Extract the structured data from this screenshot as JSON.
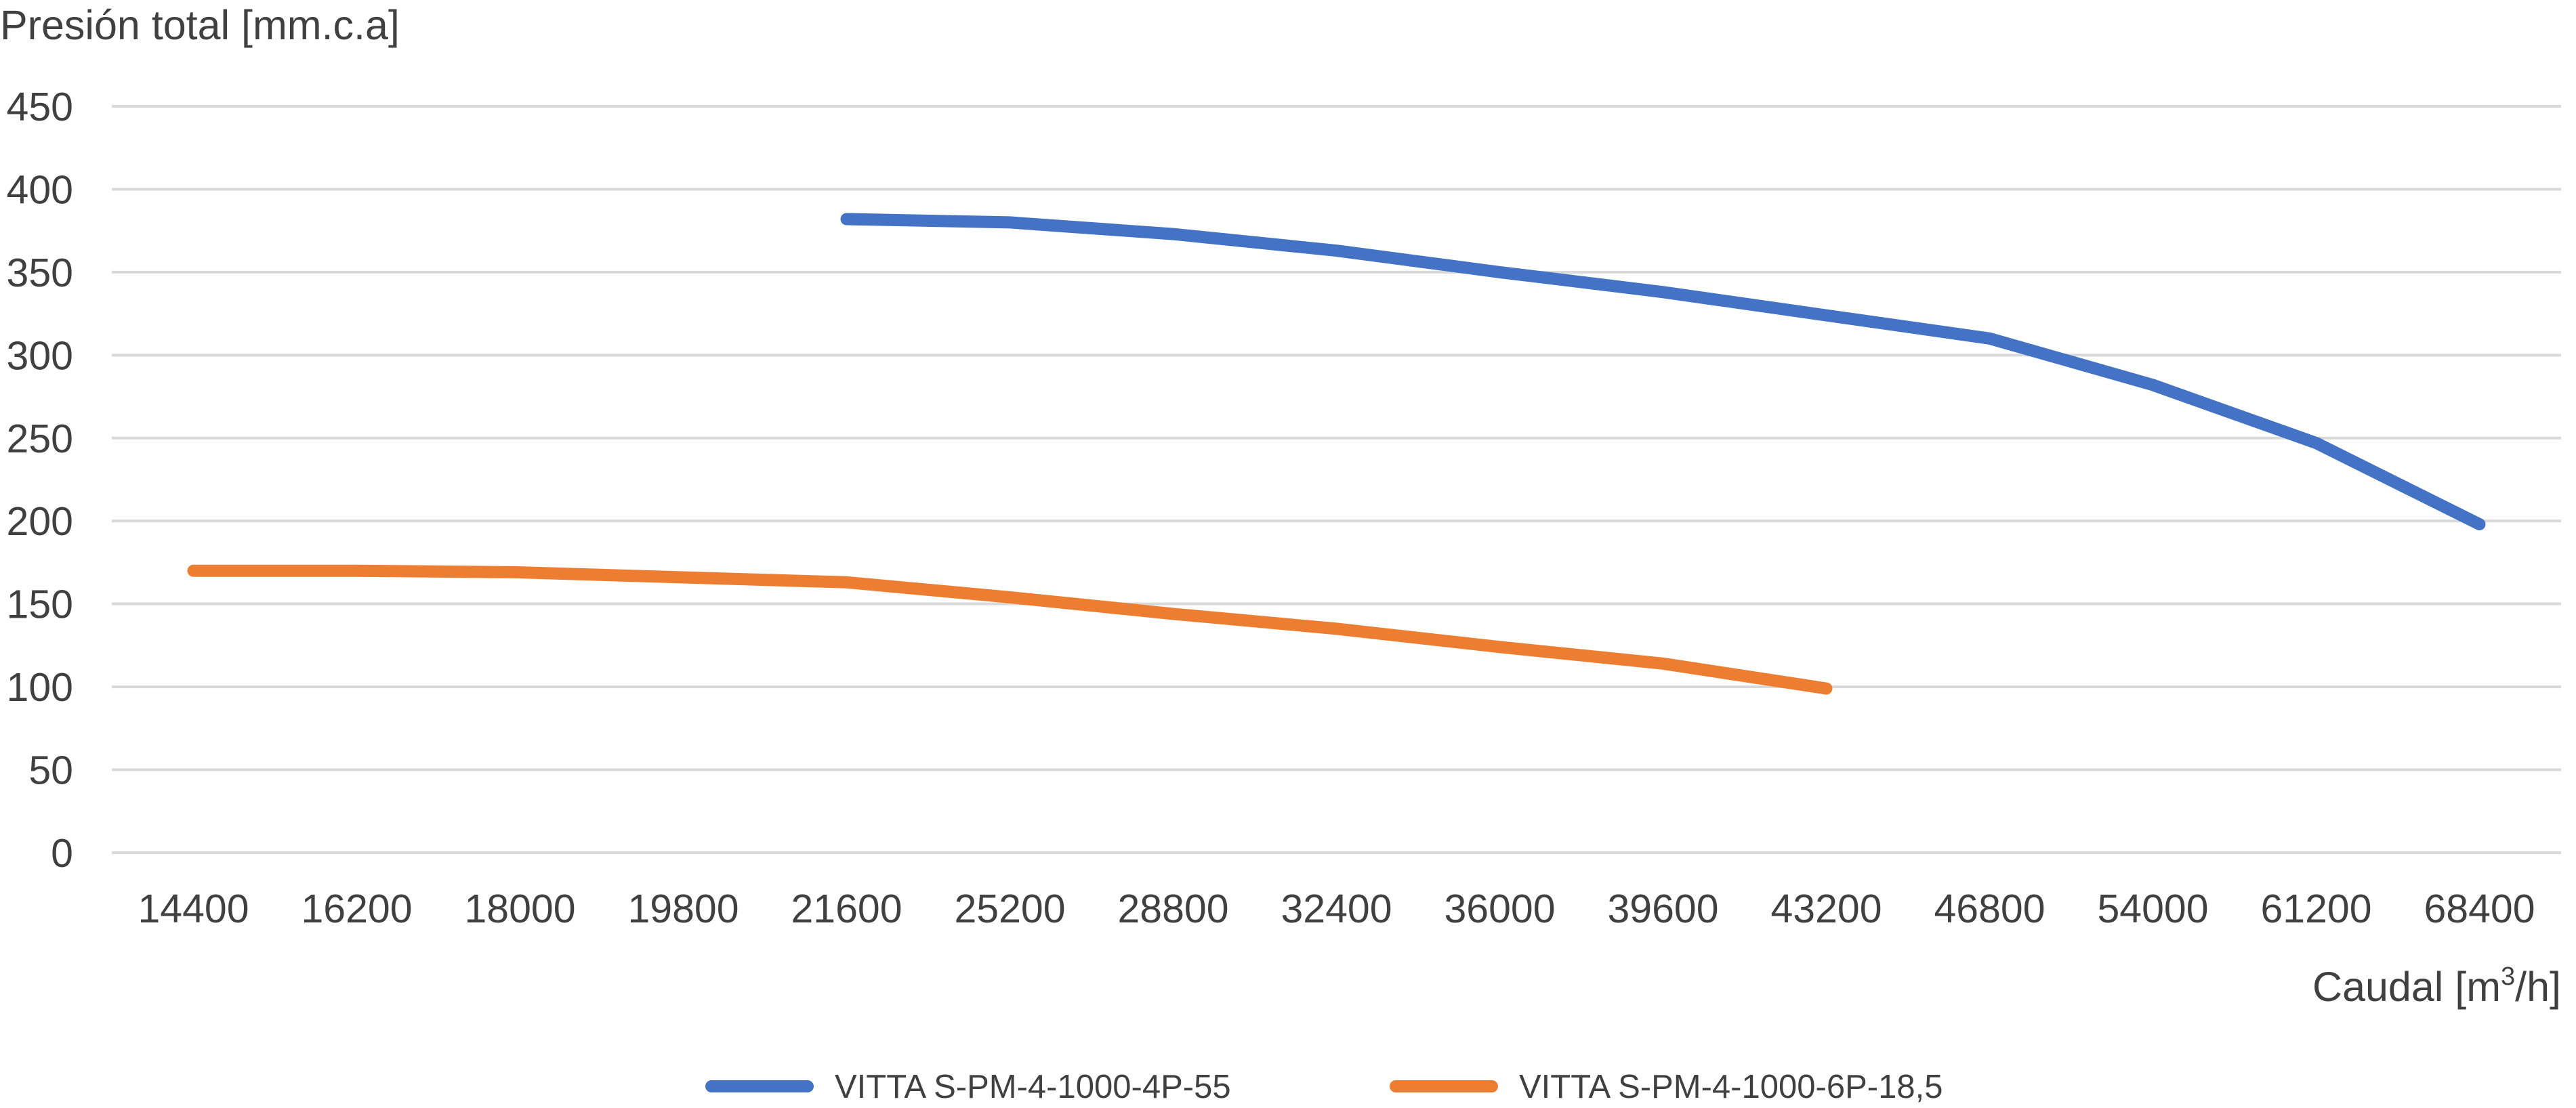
{
  "chart_data": {
    "type": "line",
    "title": "",
    "ylabel": "Presión total [mm.c.a]",
    "xlabel_main": "Caudal [m",
    "xlabel_sup": "3",
    "xlabel_tail": "/h]",
    "categories": [
      "14400",
      "16200",
      "18000",
      "19800",
      "21600",
      "25200",
      "28800",
      "32400",
      "36000",
      "39600",
      "43200",
      "46800",
      "54000",
      "61200",
      "68400"
    ],
    "ylim": [
      0,
      450
    ],
    "yticks": [
      0,
      50,
      100,
      150,
      200,
      250,
      300,
      350,
      400,
      450
    ],
    "ytick_labels": [
      "0",
      "50",
      "100",
      "150",
      "200",
      "250",
      "300",
      "350",
      "400",
      "450"
    ],
    "grid": true,
    "legend_position": "bottom",
    "series": [
      {
        "name": "VITTA S-PM-4-1000-4P-55",
        "color": "#4472C4",
        "values": [
          null,
          null,
          null,
          null,
          382,
          380,
          373,
          363,
          350,
          338,
          324,
          310,
          282,
          247,
          198
        ]
      },
      {
        "name": "VITTA S-PM-4-1000-6P-18,5",
        "color": "#ED7D31",
        "values": [
          170,
          170,
          169,
          166,
          163,
          154,
          144,
          135,
          124,
          114,
          99,
          null,
          null,
          null,
          null
        ]
      }
    ]
  }
}
